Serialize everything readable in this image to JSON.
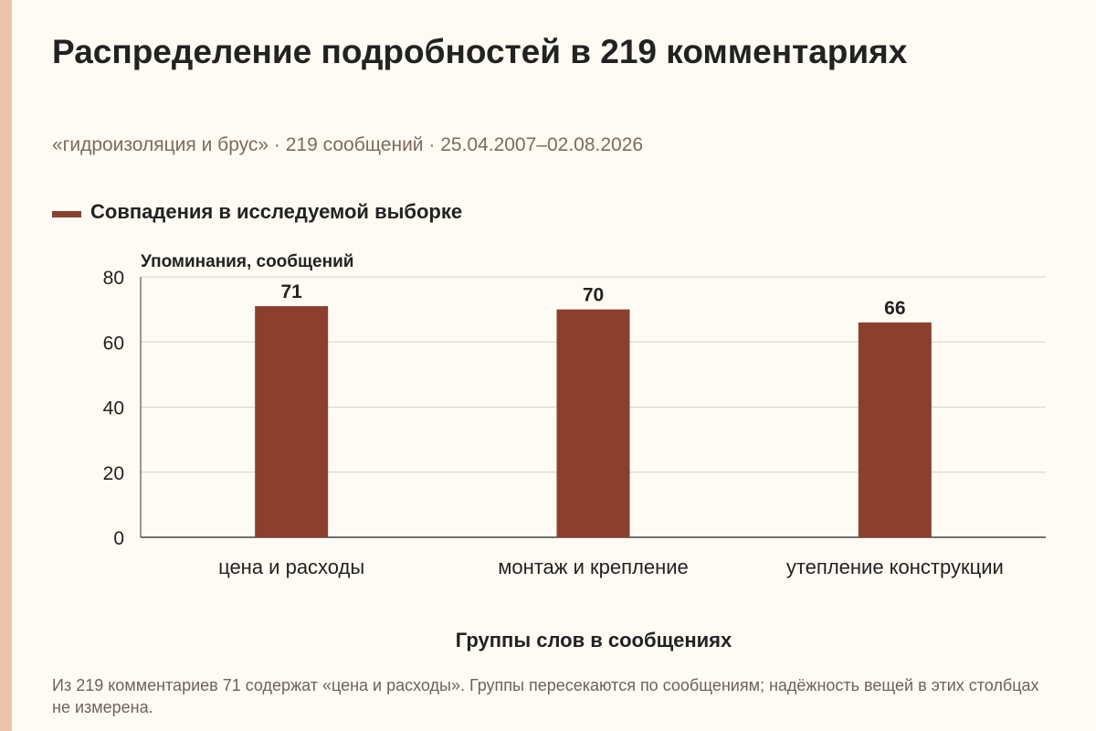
{
  "colors": {
    "accent": "#8b3f2f",
    "left_band": "#efc3ab",
    "background": "#fdfbf3"
  },
  "chart_data": {
    "type": "bar",
    "title": "Распределение подробностей в 219 комментариях",
    "subtitle": "«гидроизоляция и брус» · 219 сообщений · 25.04.2007–02.08.2026",
    "ylabel": "Упоминания, сообщений",
    "xlabel": "Группы слов в сообщениях",
    "ylim": [
      0,
      80
    ],
    "yticks": [
      0,
      20,
      40,
      60,
      80
    ],
    "grid": true,
    "legend_placement": "top-left",
    "categories": [
      "цена и расходы",
      "монтаж и крепление",
      "утепление конструкции"
    ],
    "series": [
      {
        "name": "Совпадения в исследуемой выборке",
        "values": [
          71,
          70,
          66
        ],
        "color": "#8b3f2f"
      }
    ]
  },
  "footnote": "Из 219 комментариев 71 содержат «цена и расходы». Группы пересекаются по сообщениям; надёжность вещей в этих столбцах не измерена."
}
